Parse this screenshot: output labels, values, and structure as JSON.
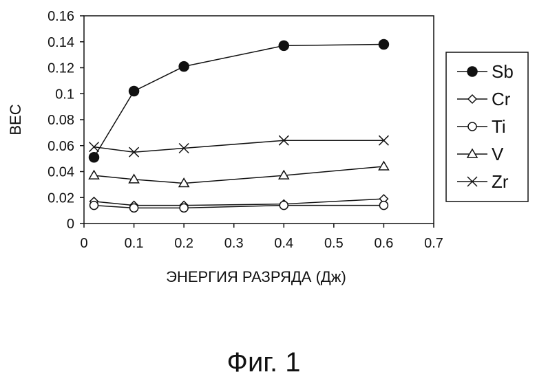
{
  "chart_data": {
    "type": "line",
    "xlabel": "ЭНЕРГИЯ РАЗРЯДА (Дж)",
    "ylabel": "BEC",
    "xlim": [
      0,
      0.7
    ],
    "ylim": [
      0,
      0.16
    ],
    "x_ticks": [
      "0",
      "0.1",
      "0.2",
      "0.3",
      "0.4",
      "0.5",
      "0.6",
      "0.7"
    ],
    "y_ticks": [
      "0",
      "0.02",
      "0.04",
      "0.06",
      "0.08",
      "0.1",
      "0.12",
      "0.14",
      "0.16"
    ],
    "grid": false,
    "legend_position": "right",
    "x": [
      0.02,
      0.1,
      0.2,
      0.4,
      0.6
    ],
    "series": [
      {
        "name": "Sb",
        "marker": "filled-circle",
        "values": [
          0.051,
          0.102,
          0.121,
          0.137,
          0.138
        ]
      },
      {
        "name": "Cr",
        "marker": "diamond",
        "values": [
          0.017,
          0.014,
          0.014,
          0.015,
          0.019
        ]
      },
      {
        "name": "Ti",
        "marker": "circle",
        "values": [
          0.014,
          0.012,
          0.012,
          0.014,
          0.014
        ]
      },
      {
        "name": "V",
        "marker": "triangle",
        "values": [
          0.037,
          0.034,
          0.031,
          0.037,
          0.044
        ]
      },
      {
        "name": "Zr",
        "marker": "x",
        "values": [
          0.059,
          0.055,
          0.058,
          0.064,
          0.064
        ]
      }
    ]
  },
  "caption": "Фиг. 1"
}
